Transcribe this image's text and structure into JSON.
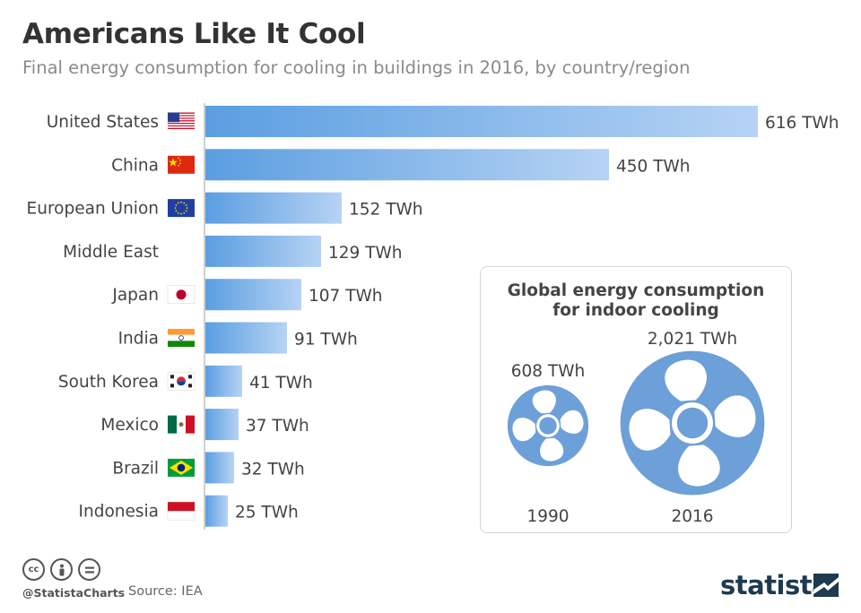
{
  "header": {
    "title": "Americans Like It Cool",
    "subtitle": "Final energy consumption for cooling in buildings in 2016, by country/region"
  },
  "chart_data": [
    {
      "type": "bar",
      "orientation": "horizontal",
      "categories": [
        "United States",
        "China",
        "European Union",
        "Middle East",
        "Japan",
        "India",
        "South Korea",
        "Mexico",
        "Brazil",
        "Indonesia"
      ],
      "values": [
        616,
        450,
        152,
        129,
        107,
        91,
        41,
        37,
        32,
        25
      ],
      "value_labels": [
        "616 TWh",
        "450 TWh",
        "152 TWh",
        "129 TWh",
        "107 TWh",
        "91 TWh",
        "41 TWh",
        "37 TWh",
        "32 TWh",
        "25 TWh"
      ],
      "flags": [
        "us-flag-icon",
        "china-flag-icon",
        "eu-flag-icon",
        null,
        "japan-flag-icon",
        "india-flag-icon",
        "south-korea-flag-icon",
        "mexico-flag-icon",
        "brazil-flag-icon",
        "indonesia-flag-icon"
      ],
      "unit": "TWh",
      "xlim": [
        0,
        616
      ],
      "grid": false,
      "colors": {
        "bar_start": "#5b9ee1",
        "bar_end": "#b6d3f4",
        "axis": "#bfbfbf"
      }
    },
    {
      "type": "pictogram",
      "title": "Global energy consumption for indoor cooling",
      "categories": [
        "1990",
        "2016"
      ],
      "values": [
        608,
        2021
      ],
      "value_labels": [
        "608 TWh",
        "2,021 TWh"
      ],
      "icon": "fan-icon",
      "colors": {
        "fan": "#6d9fd8"
      }
    }
  ],
  "inset": {
    "title_line1": "Global energy consumption",
    "title_line2": "for indoor cooling"
  },
  "footer": {
    "handle": "@StatistaCharts",
    "source": "Source: IEA",
    "brand": "statista",
    "license_icons": [
      "cc-icon",
      "by-icon",
      "nd-icon"
    ]
  }
}
